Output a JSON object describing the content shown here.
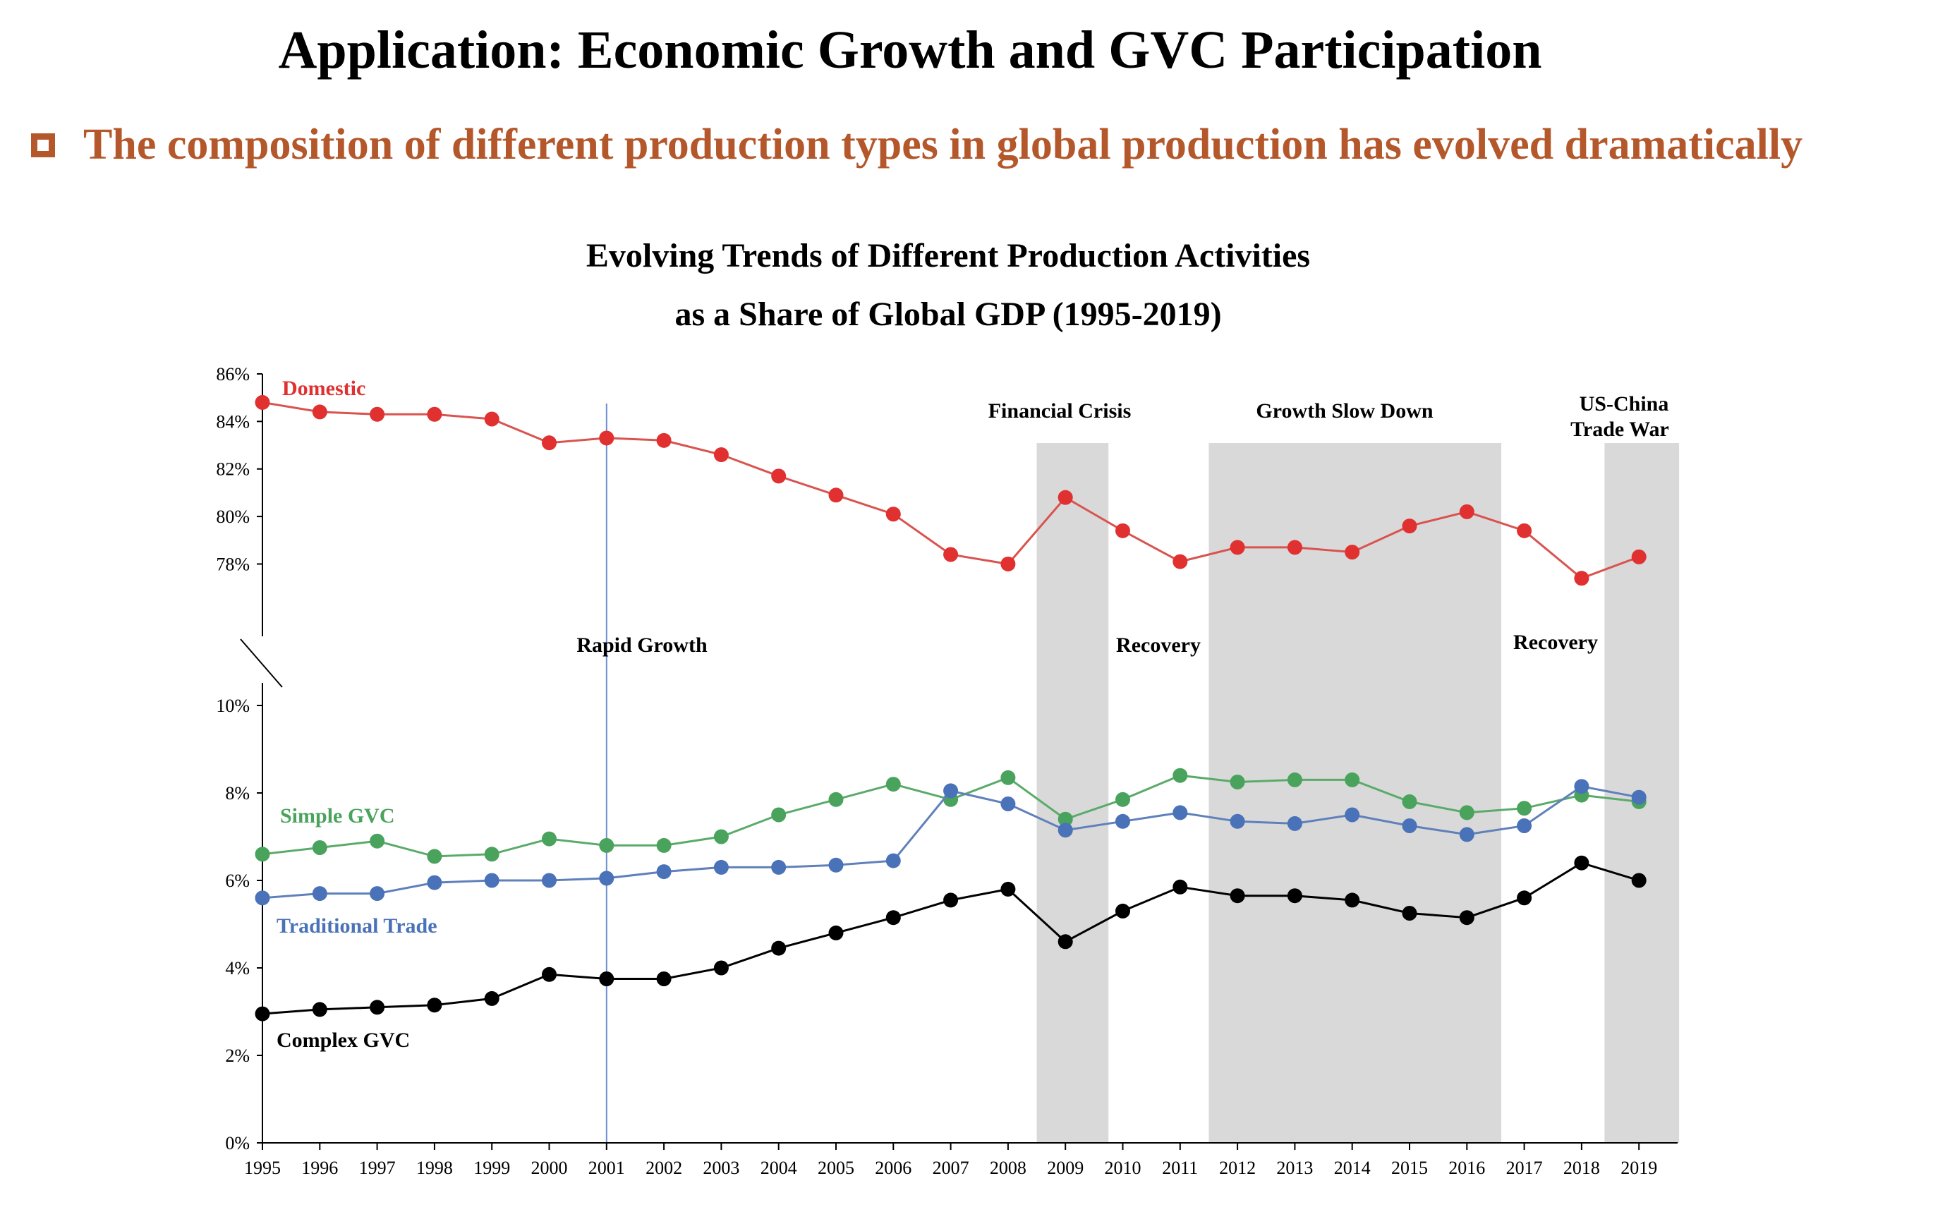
{
  "slide": {
    "title": "Application: Economic Growth and GVC Participation",
    "subtitle": "The composition of different production types in global production has evolved dramatically",
    "subtitle_color": "#b4582c"
  },
  "chart_data": {
    "type": "line",
    "title_line1": "Evolving Trends of Different Production Activities",
    "title_line2": "as a Share of Global GDP (1995-2019)",
    "x": [
      1995,
      1996,
      1997,
      1998,
      1999,
      2000,
      2001,
      2002,
      2003,
      2004,
      2005,
      2006,
      2007,
      2008,
      2009,
      2010,
      2011,
      2012,
      2013,
      2014,
      2015,
      2016,
      2017,
      2018,
      2019
    ],
    "upper_axis": {
      "ylim": [
        76.5,
        86
      ],
      "ticks": [
        78,
        80,
        82,
        84,
        86
      ],
      "tick_labels": [
        "78%",
        "80%",
        "82%",
        "84%",
        "86%"
      ]
    },
    "lower_axis": {
      "ylim": [
        0,
        10
      ],
      "ticks": [
        0,
        2,
        4,
        6,
        8,
        10
      ],
      "tick_labels": [
        "0%",
        "2%",
        "4%",
        "6%",
        "8%",
        "10%"
      ]
    },
    "series": [
      {
        "name": "Domestic",
        "panel": "upper",
        "color": "#e03030",
        "line_color": "#d9534f",
        "values": [
          84.8,
          84.4,
          84.3,
          84.3,
          84.1,
          83.1,
          83.3,
          83.2,
          82.6,
          81.7,
          80.9,
          80.1,
          78.4,
          78.0,
          80.8,
          79.4,
          78.1,
          78.7,
          78.7,
          78.5,
          79.6,
          80.2,
          79.4,
          77.4,
          78.3
        ]
      },
      {
        "name": "Simple GVC",
        "panel": "lower",
        "color": "#4aa35c",
        "line_color": "#5aab6a",
        "values": [
          6.6,
          6.75,
          6.9,
          6.55,
          6.6,
          6.95,
          6.8,
          6.8,
          7.0,
          7.5,
          7.85,
          8.2,
          7.85,
          8.35,
          7.4,
          7.85,
          8.4,
          8.25,
          8.3,
          8.3,
          7.8,
          7.55,
          7.65,
          7.95,
          7.8
        ]
      },
      {
        "name": "Traditional Trade",
        "panel": "lower",
        "color": "#4a72b8",
        "line_color": "#6080bb",
        "values": [
          5.6,
          5.7,
          5.7,
          5.95,
          6.0,
          6.0,
          6.05,
          6.2,
          6.3,
          6.3,
          6.35,
          6.45,
          8.05,
          7.75,
          7.15,
          7.35,
          7.55,
          7.35,
          7.3,
          7.5,
          7.25,
          7.05,
          7.25,
          8.15,
          7.9
        ]
      },
      {
        "name": "Complex GVC",
        "panel": "lower",
        "color": "#000000",
        "line_color": "#000000",
        "values": [
          2.95,
          3.05,
          3.1,
          3.15,
          3.3,
          3.85,
          3.75,
          3.75,
          4.0,
          4.45,
          4.8,
          5.15,
          5.55,
          5.8,
          4.6,
          5.3,
          5.85,
          5.65,
          5.65,
          5.55,
          5.25,
          5.15,
          5.6,
          6.4,
          6.0
        ]
      }
    ],
    "shaded_periods": [
      {
        "label": "Financial Crisis",
        "from": 2008.5,
        "to": 2009.75
      },
      {
        "label": "Growth Slow Down",
        "from": 2011.5,
        "to": 2016.6
      },
      {
        "label_line1": "US-China",
        "label_line2": "Trade War",
        "from": 2018.4,
        "to": 2019.7
      }
    ],
    "vertical_marker": {
      "x": 2001,
      "color": "#6e8fcf"
    },
    "annotations": [
      "Rapid Growth",
      "Recovery",
      "Recovery"
    ],
    "shade_color": "#d9d9d9",
    "grid": false,
    "legend": "inline labels"
  }
}
